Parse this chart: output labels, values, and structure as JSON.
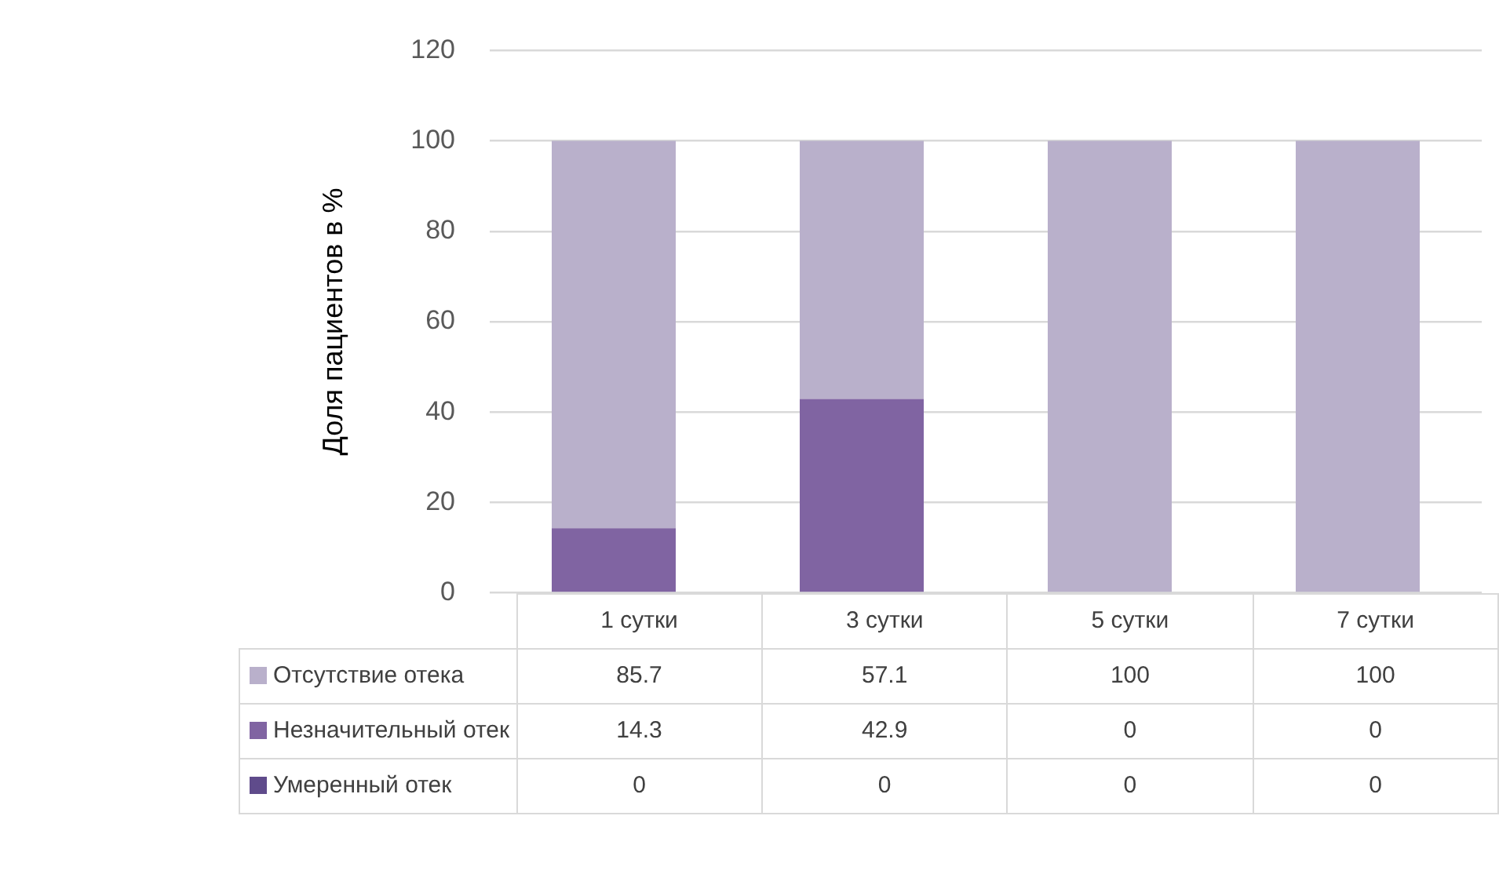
{
  "chart_data": {
    "type": "bar",
    "stacked": true,
    "ylabel": "Доля пациентов в %",
    "categories": [
      "1 сутки",
      "3 сутки",
      "5 сутки",
      "7 сутки"
    ],
    "series": [
      {
        "name": "Умеренный отек",
        "color": "#5f4b8b",
        "values": [
          0,
          0,
          0,
          0
        ]
      },
      {
        "name": "Незначительный отек",
        "color": "#8064a2",
        "values": [
          14.3,
          42.9,
          0,
          0
        ]
      },
      {
        "name": "Отсутствие отека",
        "color": "#b9b0cb",
        "values": [
          85.7,
          57.1,
          100,
          100
        ]
      }
    ],
    "ylim": [
      0,
      120
    ],
    "yticks": [
      0,
      20,
      40,
      60,
      80,
      100,
      120
    ],
    "grid": "y",
    "legend": "bottom",
    "data_labels": true
  }
}
